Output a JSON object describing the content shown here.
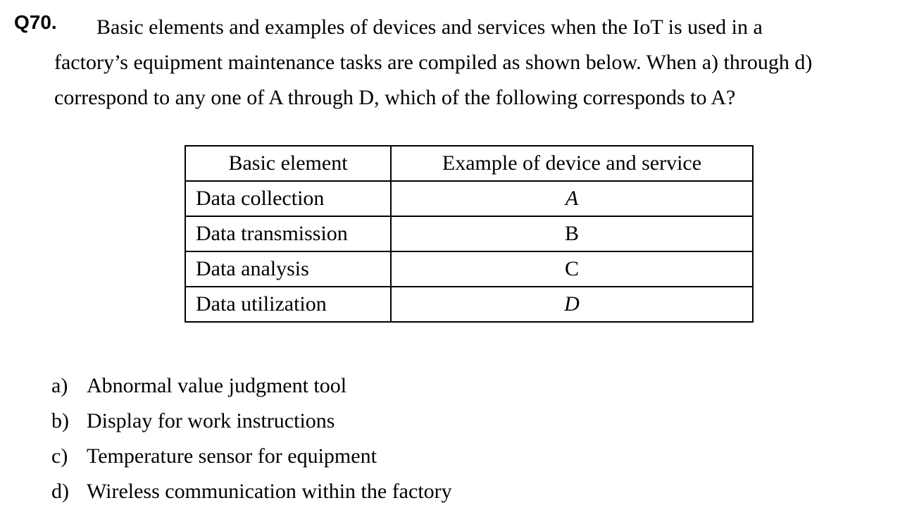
{
  "question": {
    "number": "Q70.",
    "text_line1": "Basic elements and examples of devices and services when the IoT is used in a",
    "text_rest": "factory’s equipment maintenance tasks are compiled as shown below. When a) through d) correspond to any one of A through D, which of the following corresponds to A?"
  },
  "table": {
    "headers": [
      "Basic element",
      "Example of device and service"
    ],
    "rows": [
      [
        "Data collection",
        "A"
      ],
      [
        "Data transmission",
        "B"
      ],
      [
        "Data analysis",
        "C"
      ],
      [
        "Data utilization",
        "D"
      ]
    ]
  },
  "options": [
    {
      "label": "a)",
      "text": "Abnormal value judgment tool"
    },
    {
      "label": "b)",
      "text": "Display for work instructions"
    },
    {
      "label": "c)",
      "text": "Temperature sensor for equipment"
    },
    {
      "label": "d)",
      "text": "Wireless communication within the factory"
    }
  ]
}
